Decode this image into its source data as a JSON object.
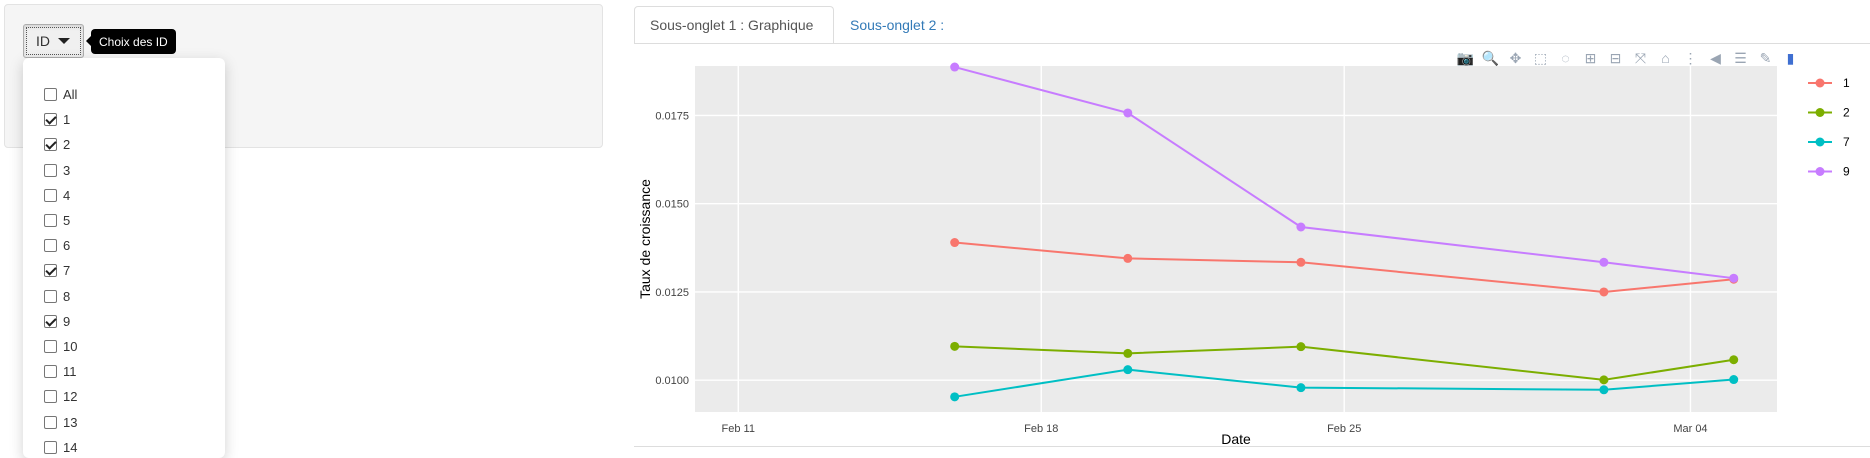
{
  "selector": {
    "button_label": "ID",
    "tooltip": "Choix des ID",
    "options": [
      {
        "label": "All",
        "checked": false
      },
      {
        "label": "1",
        "checked": true
      },
      {
        "label": "2",
        "checked": true
      },
      {
        "label": "3",
        "checked": false
      },
      {
        "label": "4",
        "checked": false
      },
      {
        "label": "5",
        "checked": false
      },
      {
        "label": "6",
        "checked": false
      },
      {
        "label": "7",
        "checked": true
      },
      {
        "label": "8",
        "checked": false
      },
      {
        "label": "9",
        "checked": true
      },
      {
        "label": "10",
        "checked": false
      },
      {
        "label": "11",
        "checked": false
      },
      {
        "label": "12",
        "checked": false
      },
      {
        "label": "13",
        "checked": false
      },
      {
        "label": "14",
        "checked": false
      }
    ]
  },
  "tabs": [
    {
      "label": "Sous-onglet 1 : Graphique",
      "active": true
    },
    {
      "label": "Sous-onglet 2 :",
      "active": false
    }
  ],
  "modebar": {
    "icons": [
      "camera-icon",
      "zoom-icon",
      "pan-icon",
      "box-select-icon",
      "lasso-select-icon",
      "zoom-in-icon",
      "zoom-out-icon",
      "autoscale-icon",
      "reset-axes-icon",
      "spike-lines-icon",
      "hover-closest-icon",
      "hover-compare-icon",
      "edit-icon",
      "plotly-logo-icon"
    ]
  },
  "chart_data": {
    "type": "line",
    "title": "",
    "xlabel": "Date",
    "ylabel": "Taux de croissance",
    "x_ticks": [
      "Feb 11",
      "Feb 18",
      "Feb 25",
      "Mar 04"
    ],
    "x_range": [
      "2024-02-10",
      "2024-03-06"
    ],
    "y_ticks": [
      "0.0100",
      "0.0125",
      "0.0150",
      "0.0175"
    ],
    "y_range": [
      0.0091,
      0.0189
    ],
    "x": [
      "2024-02-16",
      "2024-02-20",
      "2024-02-24",
      "2024-03-02",
      "2024-03-05"
    ],
    "series": [
      {
        "name": "1",
        "color": "#f8766d",
        "values": [
          0.0139,
          0.01345,
          0.01334,
          0.0125,
          0.01286
        ]
      },
      {
        "name": "2",
        "color": "#7cae00",
        "values": [
          0.01096,
          0.01076,
          0.01095,
          0.01001,
          0.01058
        ]
      },
      {
        "name": "7",
        "color": "#00bfc4",
        "values": [
          0.00953,
          0.0103,
          0.00979,
          0.00973,
          0.01002
        ]
      },
      {
        "name": "9",
        "color": "#c77cff",
        "values": [
          0.01887,
          0.01757,
          0.01434,
          0.01334,
          0.01289
        ]
      }
    ],
    "grid": true,
    "legend_position": "right"
  }
}
